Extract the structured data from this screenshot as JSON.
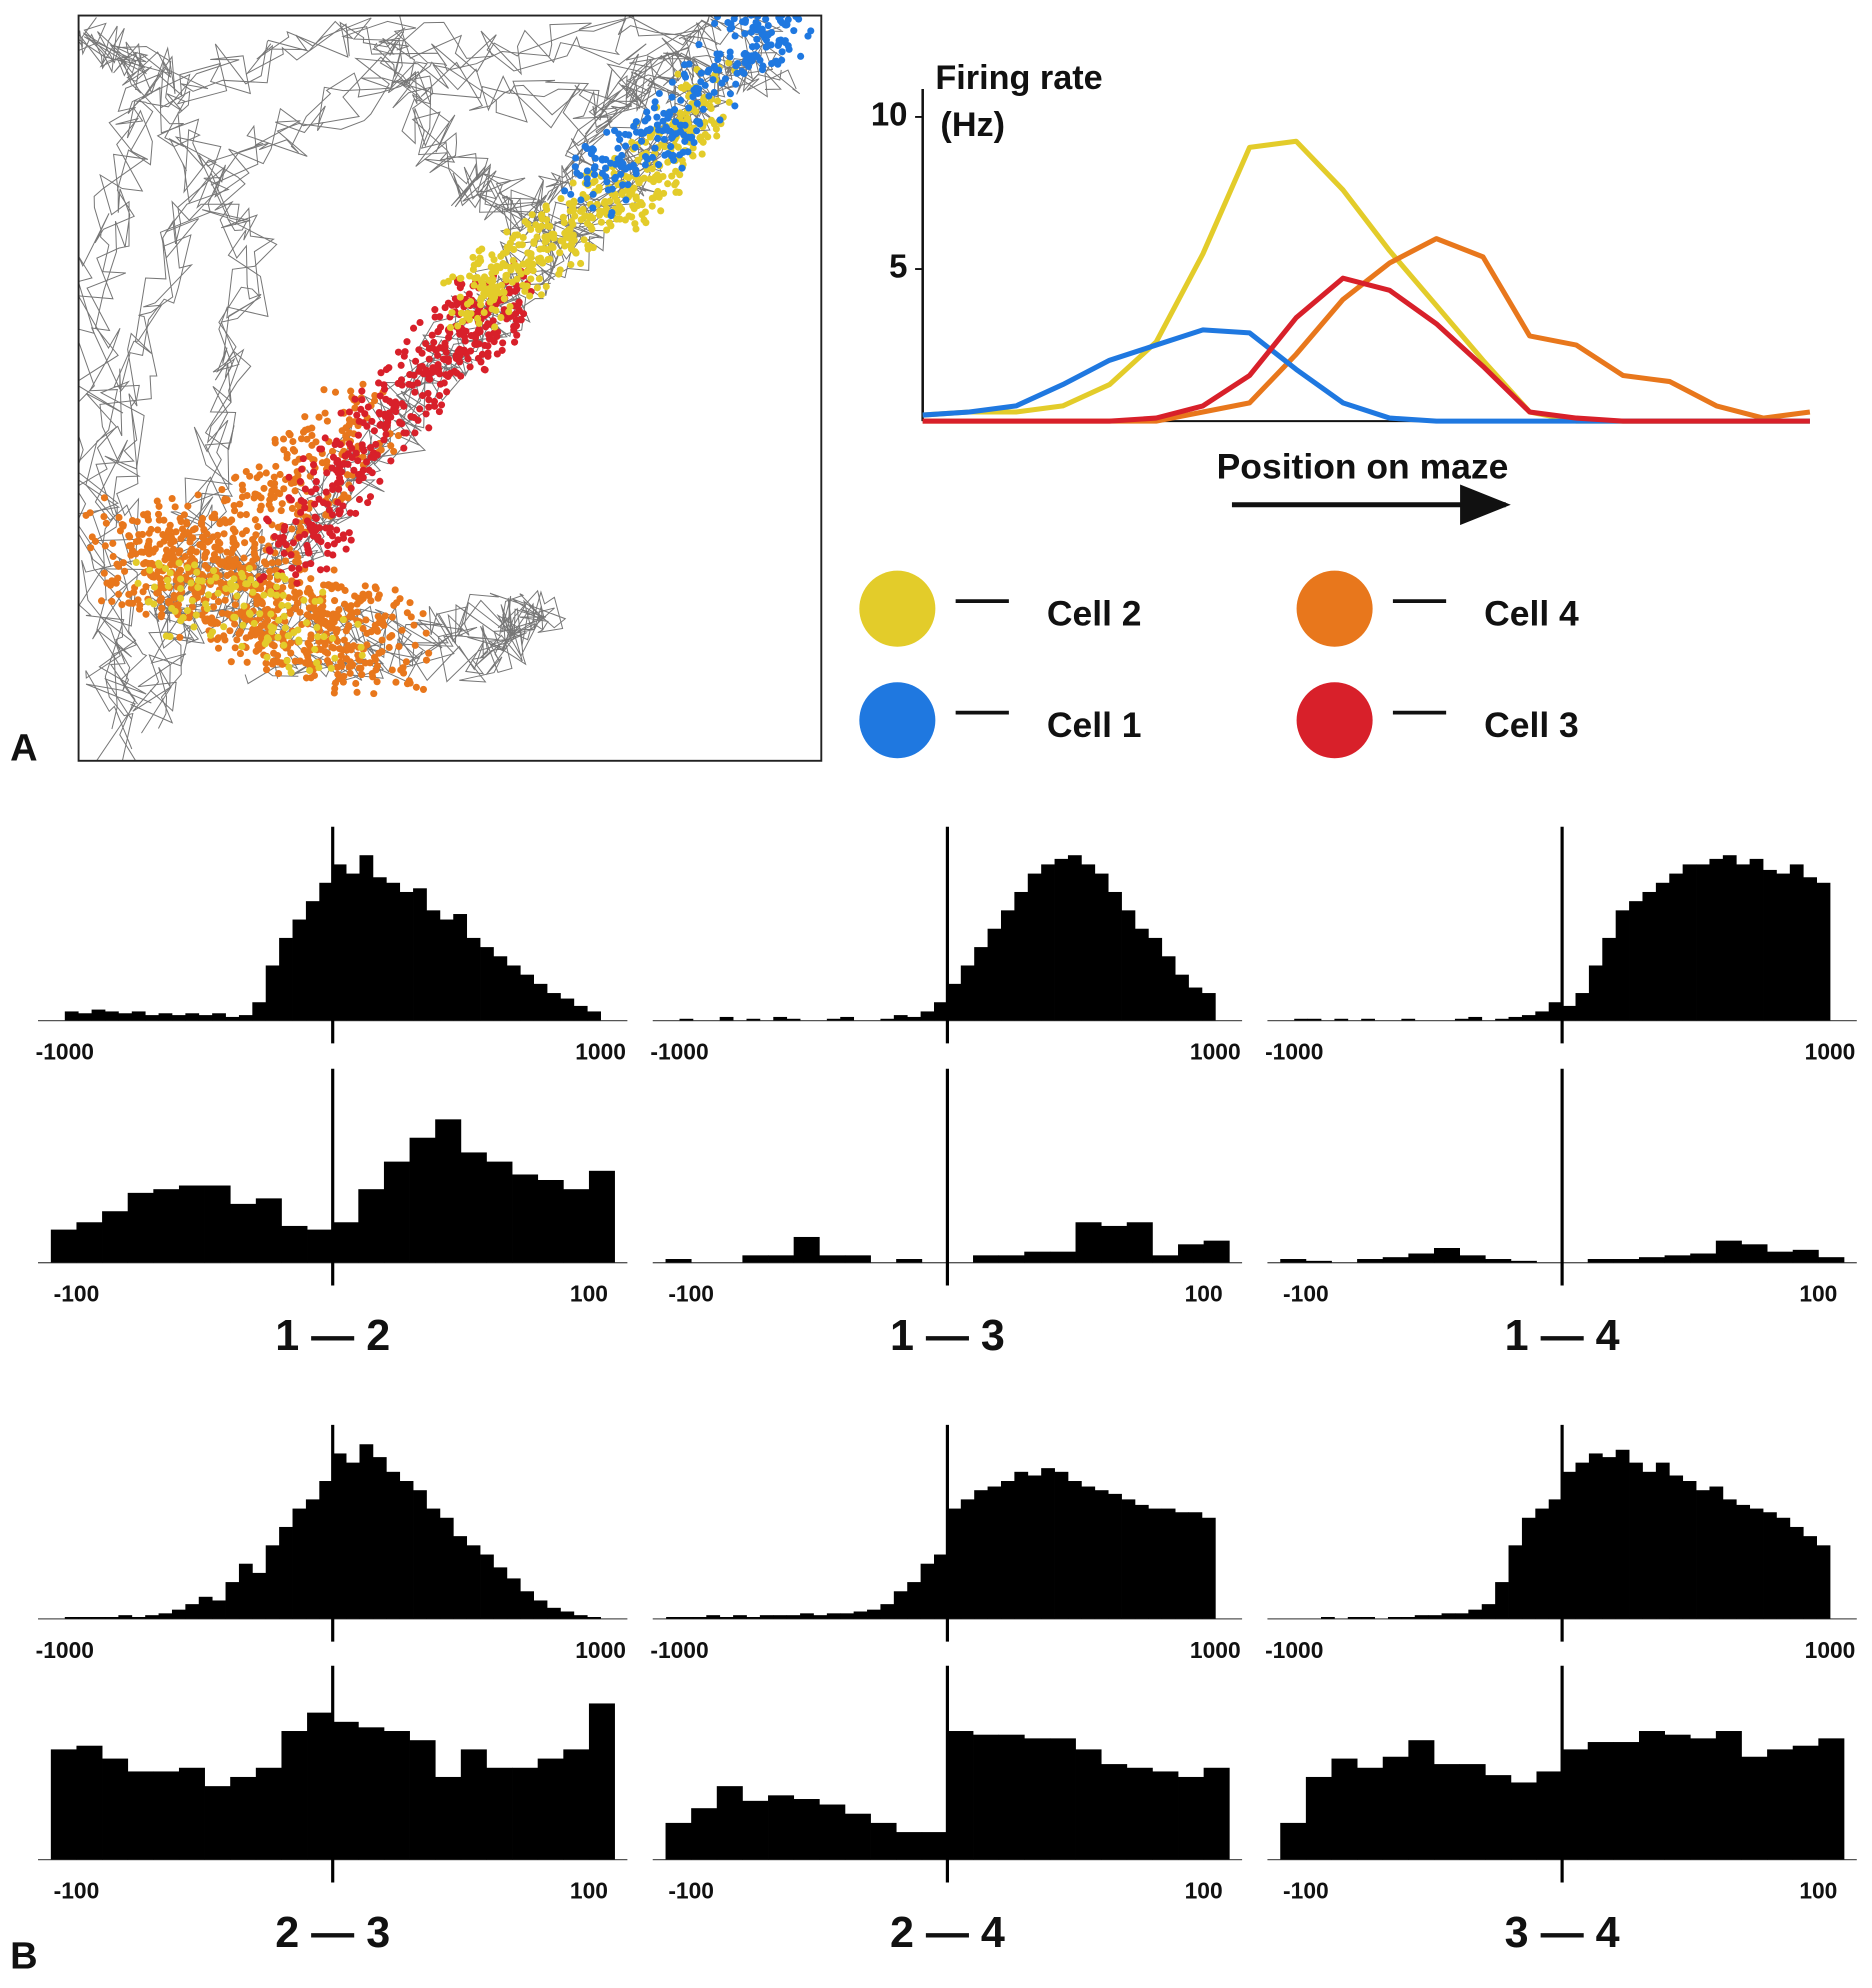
{
  "panel_labels": [
    "A",
    "B"
  ],
  "chart_data": [
    {
      "type": "line",
      "ylabel": [
        "Firing rate",
        "(Hz)"
      ],
      "xlabel": "Position on maze",
      "ylim": [
        0,
        10.5
      ],
      "yticks": [
        5,
        10
      ],
      "series": [
        {
          "name": "Cell 2",
          "color": "#e3cc2a",
          "values": [
            0.2,
            0.3,
            0.3,
            0.5,
            1.2,
            2.6,
            5.5,
            9.0,
            9.2,
            7.6,
            5.6,
            3.8,
            2.0,
            0.3,
            0,
            0,
            0,
            0,
            0,
            0
          ]
        },
        {
          "name": "Cell 4",
          "color": "#e8771c",
          "values": [
            0,
            0,
            0,
            0,
            0,
            0,
            0.3,
            0.6,
            2.2,
            4.0,
            5.2,
            6.0,
            5.4,
            2.8,
            2.5,
            1.5,
            1.3,
            0.5,
            0.1,
            0.3
          ]
        },
        {
          "name": "Cell 1",
          "color": "#1f78e0",
          "values": [
            0.2,
            0.3,
            0.5,
            1.2,
            2.0,
            2.5,
            3.0,
            2.9,
            1.7,
            0.6,
            0.1,
            0,
            0,
            0,
            0,
            0,
            0,
            0,
            0,
            0
          ]
        },
        {
          "name": "Cell 3",
          "color": "#d8202a",
          "values": [
            0,
            0,
            0,
            0,
            0,
            0.1,
            0.5,
            1.5,
            3.4,
            4.7,
            4.3,
            3.2,
            1.8,
            0.3,
            0.1,
            0,
            0,
            0,
            0,
            0
          ]
        }
      ]
    },
    {
      "type": "histogram",
      "xlim": [
        -1100,
        1100
      ],
      "xticks": [
        -1000,
        1000
      ],
      "ylim": [
        0,
        100
      ],
      "bins": [
        -1050,
        -1000,
        -950,
        -900,
        -850,
        -800,
        -750,
        -700,
        -650,
        -600,
        -550,
        -500,
        -450,
        -400,
        -350,
        -300,
        -250,
        -200,
        -150,
        -100,
        -50,
        0,
        50,
        100,
        150,
        200,
        250,
        300,
        350,
        400,
        450,
        500,
        550,
        600,
        650,
        700,
        750,
        800,
        850,
        900,
        950,
        1000,
        1050
      ],
      "values": [
        0,
        5,
        4,
        6,
        5,
        4,
        5,
        3,
        4,
        3,
        4,
        3,
        4,
        2,
        3,
        10,
        30,
        45,
        55,
        65,
        75,
        85,
        80,
        90,
        78,
        75,
        70,
        72,
        60,
        55,
        58,
        45,
        40,
        35,
        30,
        25,
        20,
        15,
        12,
        8,
        5,
        0
      ]
    },
    {
      "type": "histogram",
      "title": "1 — 2",
      "xlim": [
        -115,
        115
      ],
      "xticks": [
        -100,
        100
      ],
      "ylim": [
        0,
        100
      ],
      "bins": [
        -110,
        -100,
        -90,
        -80,
        -70,
        -60,
        -50,
        -40,
        -30,
        -20,
        -10,
        0,
        10,
        20,
        30,
        40,
        50,
        60,
        70,
        80,
        90,
        100,
        110
      ],
      "values": [
        18,
        22,
        28,
        38,
        40,
        42,
        42,
        32,
        35,
        20,
        18,
        22,
        40,
        55,
        68,
        78,
        60,
        55,
        48,
        45,
        40,
        50
      ]
    },
    {
      "type": "histogram",
      "xlim": [
        -1100,
        1100
      ],
      "xticks": [
        -1000,
        1000
      ],
      "ylim": [
        0,
        100
      ],
      "bins": [
        -1050,
        -1000,
        -950,
        -900,
        -850,
        -800,
        -750,
        -700,
        -650,
        -600,
        -550,
        -500,
        -450,
        -400,
        -350,
        -300,
        -250,
        -200,
        -150,
        -100,
        -50,
        0,
        50,
        100,
        150,
        200,
        250,
        300,
        350,
        400,
        450,
        500,
        550,
        600,
        650,
        700,
        750,
        800,
        850,
        900,
        950,
        1000,
        1050
      ],
      "values": [
        0,
        1,
        0,
        0,
        2,
        0,
        1,
        0,
        2,
        1,
        0,
        0,
        1,
        2,
        0,
        0,
        1,
        3,
        2,
        5,
        10,
        20,
        30,
        40,
        50,
        60,
        70,
        80,
        85,
        88,
        90,
        85,
        80,
        70,
        60,
        50,
        45,
        35,
        25,
        18,
        15,
        0
      ]
    },
    {
      "type": "histogram",
      "title": "1 — 3",
      "xlim": [
        -115,
        115
      ],
      "xticks": [
        -100,
        100
      ],
      "ylim": [
        0,
        100
      ],
      "bins": [
        -110,
        -100,
        -90,
        -80,
        -70,
        -60,
        -50,
        -40,
        -30,
        -20,
        -10,
        0,
        10,
        20,
        30,
        40,
        50,
        60,
        70,
        80,
        90,
        100,
        110
      ],
      "values": [
        2,
        0,
        0,
        4,
        4,
        14,
        4,
        4,
        0,
        2,
        0,
        0,
        4,
        4,
        6,
        6,
        22,
        20,
        22,
        4,
        10,
        12
      ]
    },
    {
      "type": "histogram",
      "xlim": [
        -1100,
        1100
      ],
      "xticks": [
        -1000,
        1000
      ],
      "ylim": [
        0,
        100
      ],
      "bins": [
        -1050,
        -1000,
        -950,
        -900,
        -850,
        -800,
        -750,
        -700,
        -650,
        -600,
        -550,
        -500,
        -450,
        -400,
        -350,
        -300,
        -250,
        -200,
        -150,
        -100,
        -50,
        0,
        50,
        100,
        150,
        200,
        250,
        300,
        350,
        400,
        450,
        500,
        550,
        600,
        650,
        700,
        750,
        800,
        850,
        900,
        950,
        1000,
        1050
      ],
      "values": [
        0,
        1,
        1,
        0,
        1,
        0,
        1,
        0,
        0,
        1,
        0,
        0,
        0,
        1,
        2,
        0,
        1,
        2,
        3,
        5,
        10,
        8,
        15,
        30,
        45,
        60,
        65,
        70,
        75,
        80,
        85,
        85,
        88,
        90,
        85,
        88,
        82,
        80,
        85,
        78,
        75,
        0
      ]
    },
    {
      "type": "histogram",
      "title": "1 — 4",
      "xlim": [
        -115,
        115
      ],
      "xticks": [
        -100,
        100
      ],
      "ylim": [
        0,
        100
      ],
      "bins": [
        -110,
        -100,
        -90,
        -80,
        -70,
        -60,
        -50,
        -40,
        -30,
        -20,
        -10,
        0,
        10,
        20,
        30,
        40,
        50,
        60,
        70,
        80,
        90,
        100,
        110
      ],
      "values": [
        2,
        1,
        0,
        2,
        3,
        5,
        8,
        4,
        2,
        1,
        0,
        0,
        2,
        2,
        3,
        4,
        5,
        12,
        10,
        6,
        7,
        3
      ]
    },
    {
      "type": "histogram",
      "xlim": [
        -1100,
        1100
      ],
      "xticks": [
        -1000,
        1000
      ],
      "ylim": [
        0,
        100
      ],
      "bins": [
        -1050,
        -1000,
        -950,
        -900,
        -850,
        -800,
        -750,
        -700,
        -650,
        -600,
        -550,
        -500,
        -450,
        -400,
        -350,
        -300,
        -250,
        -200,
        -150,
        -100,
        -50,
        0,
        50,
        100,
        150,
        200,
        250,
        300,
        350,
        400,
        450,
        500,
        550,
        600,
        650,
        700,
        750,
        800,
        850,
        900,
        950,
        1000,
        1050
      ],
      "values": [
        0,
        1,
        1,
        1,
        1,
        2,
        1,
        2,
        3,
        5,
        8,
        12,
        10,
        20,
        30,
        25,
        40,
        50,
        60,
        65,
        75,
        90,
        85,
        95,
        88,
        80,
        75,
        70,
        60,
        55,
        45,
        40,
        35,
        28,
        22,
        15,
        10,
        6,
        4,
        2,
        1,
        0
      ]
    },
    {
      "type": "histogram",
      "title": "2 — 3",
      "xlim": [
        -115,
        115
      ],
      "xticks": [
        -100,
        100
      ],
      "ylim": [
        0,
        100
      ],
      "bins": [
        -110,
        -100,
        -90,
        -80,
        -70,
        -60,
        -50,
        -40,
        -30,
        -20,
        -10,
        0,
        10,
        20,
        30,
        40,
        50,
        60,
        70,
        80,
        90,
        100,
        110
      ],
      "values": [
        60,
        62,
        55,
        48,
        48,
        50,
        40,
        45,
        50,
        70,
        80,
        75,
        72,
        70,
        65,
        45,
        60,
        50,
        50,
        55,
        60,
        85
      ]
    },
    {
      "type": "histogram",
      "xlim": [
        -1100,
        1100
      ],
      "xticks": [
        -1000,
        1000
      ],
      "ylim": [
        0,
        100
      ],
      "bins": [
        -1050,
        -1000,
        -950,
        -900,
        -850,
        -800,
        -750,
        -700,
        -650,
        -600,
        -550,
        -500,
        -450,
        -400,
        -350,
        -300,
        -250,
        -200,
        -150,
        -100,
        -50,
        0,
        50,
        100,
        150,
        200,
        250,
        300,
        350,
        400,
        450,
        500,
        550,
        600,
        650,
        700,
        750,
        800,
        850,
        900,
        950,
        1000,
        1050
      ],
      "values": [
        1,
        1,
        1,
        2,
        1,
        2,
        1,
        2,
        2,
        2,
        3,
        2,
        3,
        3,
        4,
        5,
        8,
        15,
        20,
        30,
        35,
        60,
        65,
        70,
        72,
        75,
        80,
        78,
        82,
        80,
        75,
        72,
        70,
        68,
        65,
        62,
        60,
        60,
        58,
        58,
        55,
        0
      ]
    },
    {
      "type": "histogram",
      "title": "2 — 4",
      "xlim": [
        -115,
        115
      ],
      "xticks": [
        -100,
        100
      ],
      "ylim": [
        0,
        100
      ],
      "bins": [
        -110,
        -100,
        -90,
        -80,
        -70,
        -60,
        -50,
        -40,
        -30,
        -20,
        -10,
        0,
        10,
        20,
        30,
        40,
        50,
        60,
        70,
        80,
        90,
        100,
        110
      ],
      "values": [
        20,
        28,
        40,
        32,
        35,
        33,
        30,
        25,
        20,
        15,
        15,
        70,
        68,
        68,
        66,
        66,
        60,
        52,
        50,
        48,
        45,
        50
      ]
    },
    {
      "type": "histogram",
      "xlim": [
        -1100,
        1100
      ],
      "xticks": [
        -1000,
        1000
      ],
      "ylim": [
        0,
        100
      ],
      "bins": [
        -1050,
        -1000,
        -950,
        -900,
        -850,
        -800,
        -750,
        -700,
        -650,
        -600,
        -550,
        -500,
        -450,
        -400,
        -350,
        -300,
        -250,
        -200,
        -150,
        -100,
        -50,
        0,
        50,
        100,
        150,
        200,
        250,
        300,
        350,
        400,
        450,
        500,
        550,
        600,
        650,
        700,
        750,
        800,
        850,
        900,
        950,
        1000,
        1050
      ],
      "values": [
        0,
        0,
        0,
        1,
        0,
        1,
        1,
        0,
        1,
        1,
        2,
        2,
        3,
        3,
        5,
        8,
        20,
        40,
        55,
        60,
        65,
        80,
        85,
        90,
        88,
        92,
        85,
        80,
        85,
        78,
        75,
        70,
        72,
        65,
        62,
        60,
        58,
        55,
        50,
        45,
        40,
        0
      ]
    },
    {
      "type": "histogram",
      "title": "3 — 4",
      "xlim": [
        -115,
        115
      ],
      "xticks": [
        -100,
        100
      ],
      "ylim": [
        0,
        100
      ],
      "bins": [
        -110,
        -100,
        -90,
        -80,
        -70,
        -60,
        -50,
        -40,
        -30,
        -20,
        -10,
        0,
        10,
        20,
        30,
        40,
        50,
        60,
        70,
        80,
        90,
        100,
        110
      ],
      "values": [
        20,
        45,
        55,
        50,
        56,
        65,
        52,
        52,
        46,
        42,
        48,
        60,
        64,
        64,
        70,
        68,
        66,
        70,
        56,
        60,
        62,
        66
      ]
    }
  ]
}
